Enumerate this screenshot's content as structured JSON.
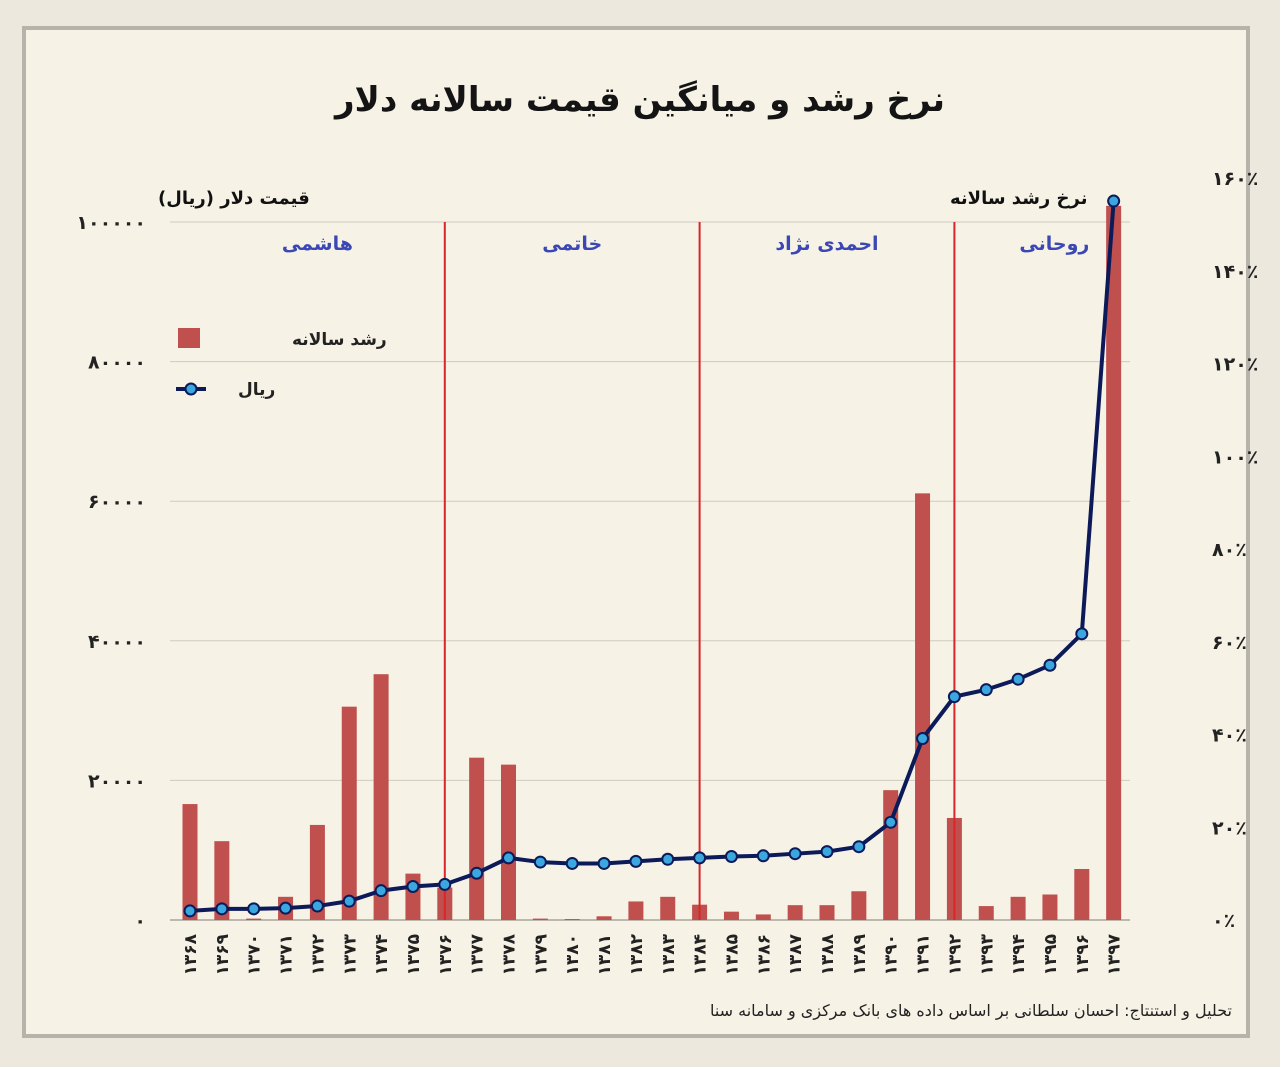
{
  "title": "نرخ رشد و میانگین قیمت سالانه دلار",
  "credit": "تحلیل و استنتاج: احسان سلطانی بر اساس داده های بانک مرکزی و سامانه سنا",
  "colors": {
    "bar": "#c0504d",
    "line": "#0c1a5a",
    "marker": "#3aa8df",
    "divider": "#d9262a",
    "era": "#3b47b4",
    "grid": "#cfcbc1"
  },
  "chart_data": {
    "type": "bar",
    "title": "نرخ رشد و میانگین قیمت سالانه دلار",
    "categories": [
      "۱۳۶۸",
      "۱۳۶۹",
      "۱۳۷۰",
      "۱۳۷۱",
      "۱۳۷۲",
      "۱۳۷۳",
      "۱۳۷۴",
      "۱۳۷۵",
      "۱۳۷۶",
      "۱۳۷۷",
      "۱۳۷۸",
      "۱۳۷۹",
      "۱۳۸۰",
      "۱۳۸۱",
      "۱۳۸۲",
      "۱۳۸۳",
      "۱۳۸۴",
      "۱۳۸۵",
      "۱۳۸۶",
      "۱۳۸۷",
      "۱۳۸۸",
      "۱۳۸۹",
      "۱۳۹۰",
      "۱۳۹۱",
      "۱۳۹۲",
      "۱۳۹۳",
      "۱۳۹۴",
      "۱۳۹۵",
      "۱۳۹۶",
      "۱۳۹۷"
    ],
    "left_axis": {
      "label": "قیمت دلار (ریال)",
      "ylim": [
        0,
        100000
      ],
      "ticks": [
        "۰",
        "۲۰۰۰۰",
        "۴۰۰۰۰",
        "۶۰۰۰۰",
        "۸۰۰۰۰",
        "۱۰۰۰۰۰"
      ]
    },
    "right_axis": {
      "label": "نرخ رشد سالانه",
      "ylim": [
        0,
        160
      ],
      "ticks": [
        "۰٪",
        "۲۰٪",
        "۴۰٪",
        "۶۰٪",
        "۸۰٪",
        "۱۰۰٪",
        "۱۲۰٪",
        "۱۴۰٪",
        "۱۶۰٪"
      ]
    },
    "series": [
      {
        "name": "رشد سالانه",
        "type": "bar",
        "axis": "right",
        "values": [
          25,
          17,
          0.3,
          5,
          20.5,
          46,
          53,
          10,
          7,
          35,
          33.5,
          0.3,
          0.2,
          0.8,
          4,
          5,
          3.3,
          1.8,
          1.2,
          3.2,
          3.2,
          6.2,
          28,
          92,
          22,
          3,
          5,
          5.5,
          11,
          154
        ]
      },
      {
        "name": "ریال",
        "type": "line",
        "axis": "left",
        "values": [
          1300,
          1600,
          1600,
          1700,
          2000,
          2700,
          4200,
          4800,
          5100,
          6700,
          8900,
          8300,
          8100,
          8100,
          8400,
          8700,
          8900,
          9100,
          9200,
          9500,
          9800,
          10500,
          14000,
          26000,
          32000,
          33000,
          34500,
          36500,
          41000,
          103000
        ]
      }
    ],
    "eras": [
      {
        "label": "هاشمی",
        "from": "۱۳۶۸",
        "to": "۱۳۷۶"
      },
      {
        "label": "خاتمی",
        "from": "۱۳۷۶",
        "to": "۱۳۸۴"
      },
      {
        "label": "احمدی نژاد",
        "from": "۱۳۸۴",
        "to": "۱۳۹۲"
      },
      {
        "label": "روحانی",
        "from": "۱۳۹۲",
        "to": "۱۳۹۷"
      }
    ],
    "dividers_at": [
      "۱۳۷۶",
      "۱۳۸۴",
      "۱۳۹۲"
    ],
    "legend": {
      "placement": "top-left",
      "items": [
        "رشد سالانه",
        "ریال"
      ]
    },
    "grid": true
  }
}
